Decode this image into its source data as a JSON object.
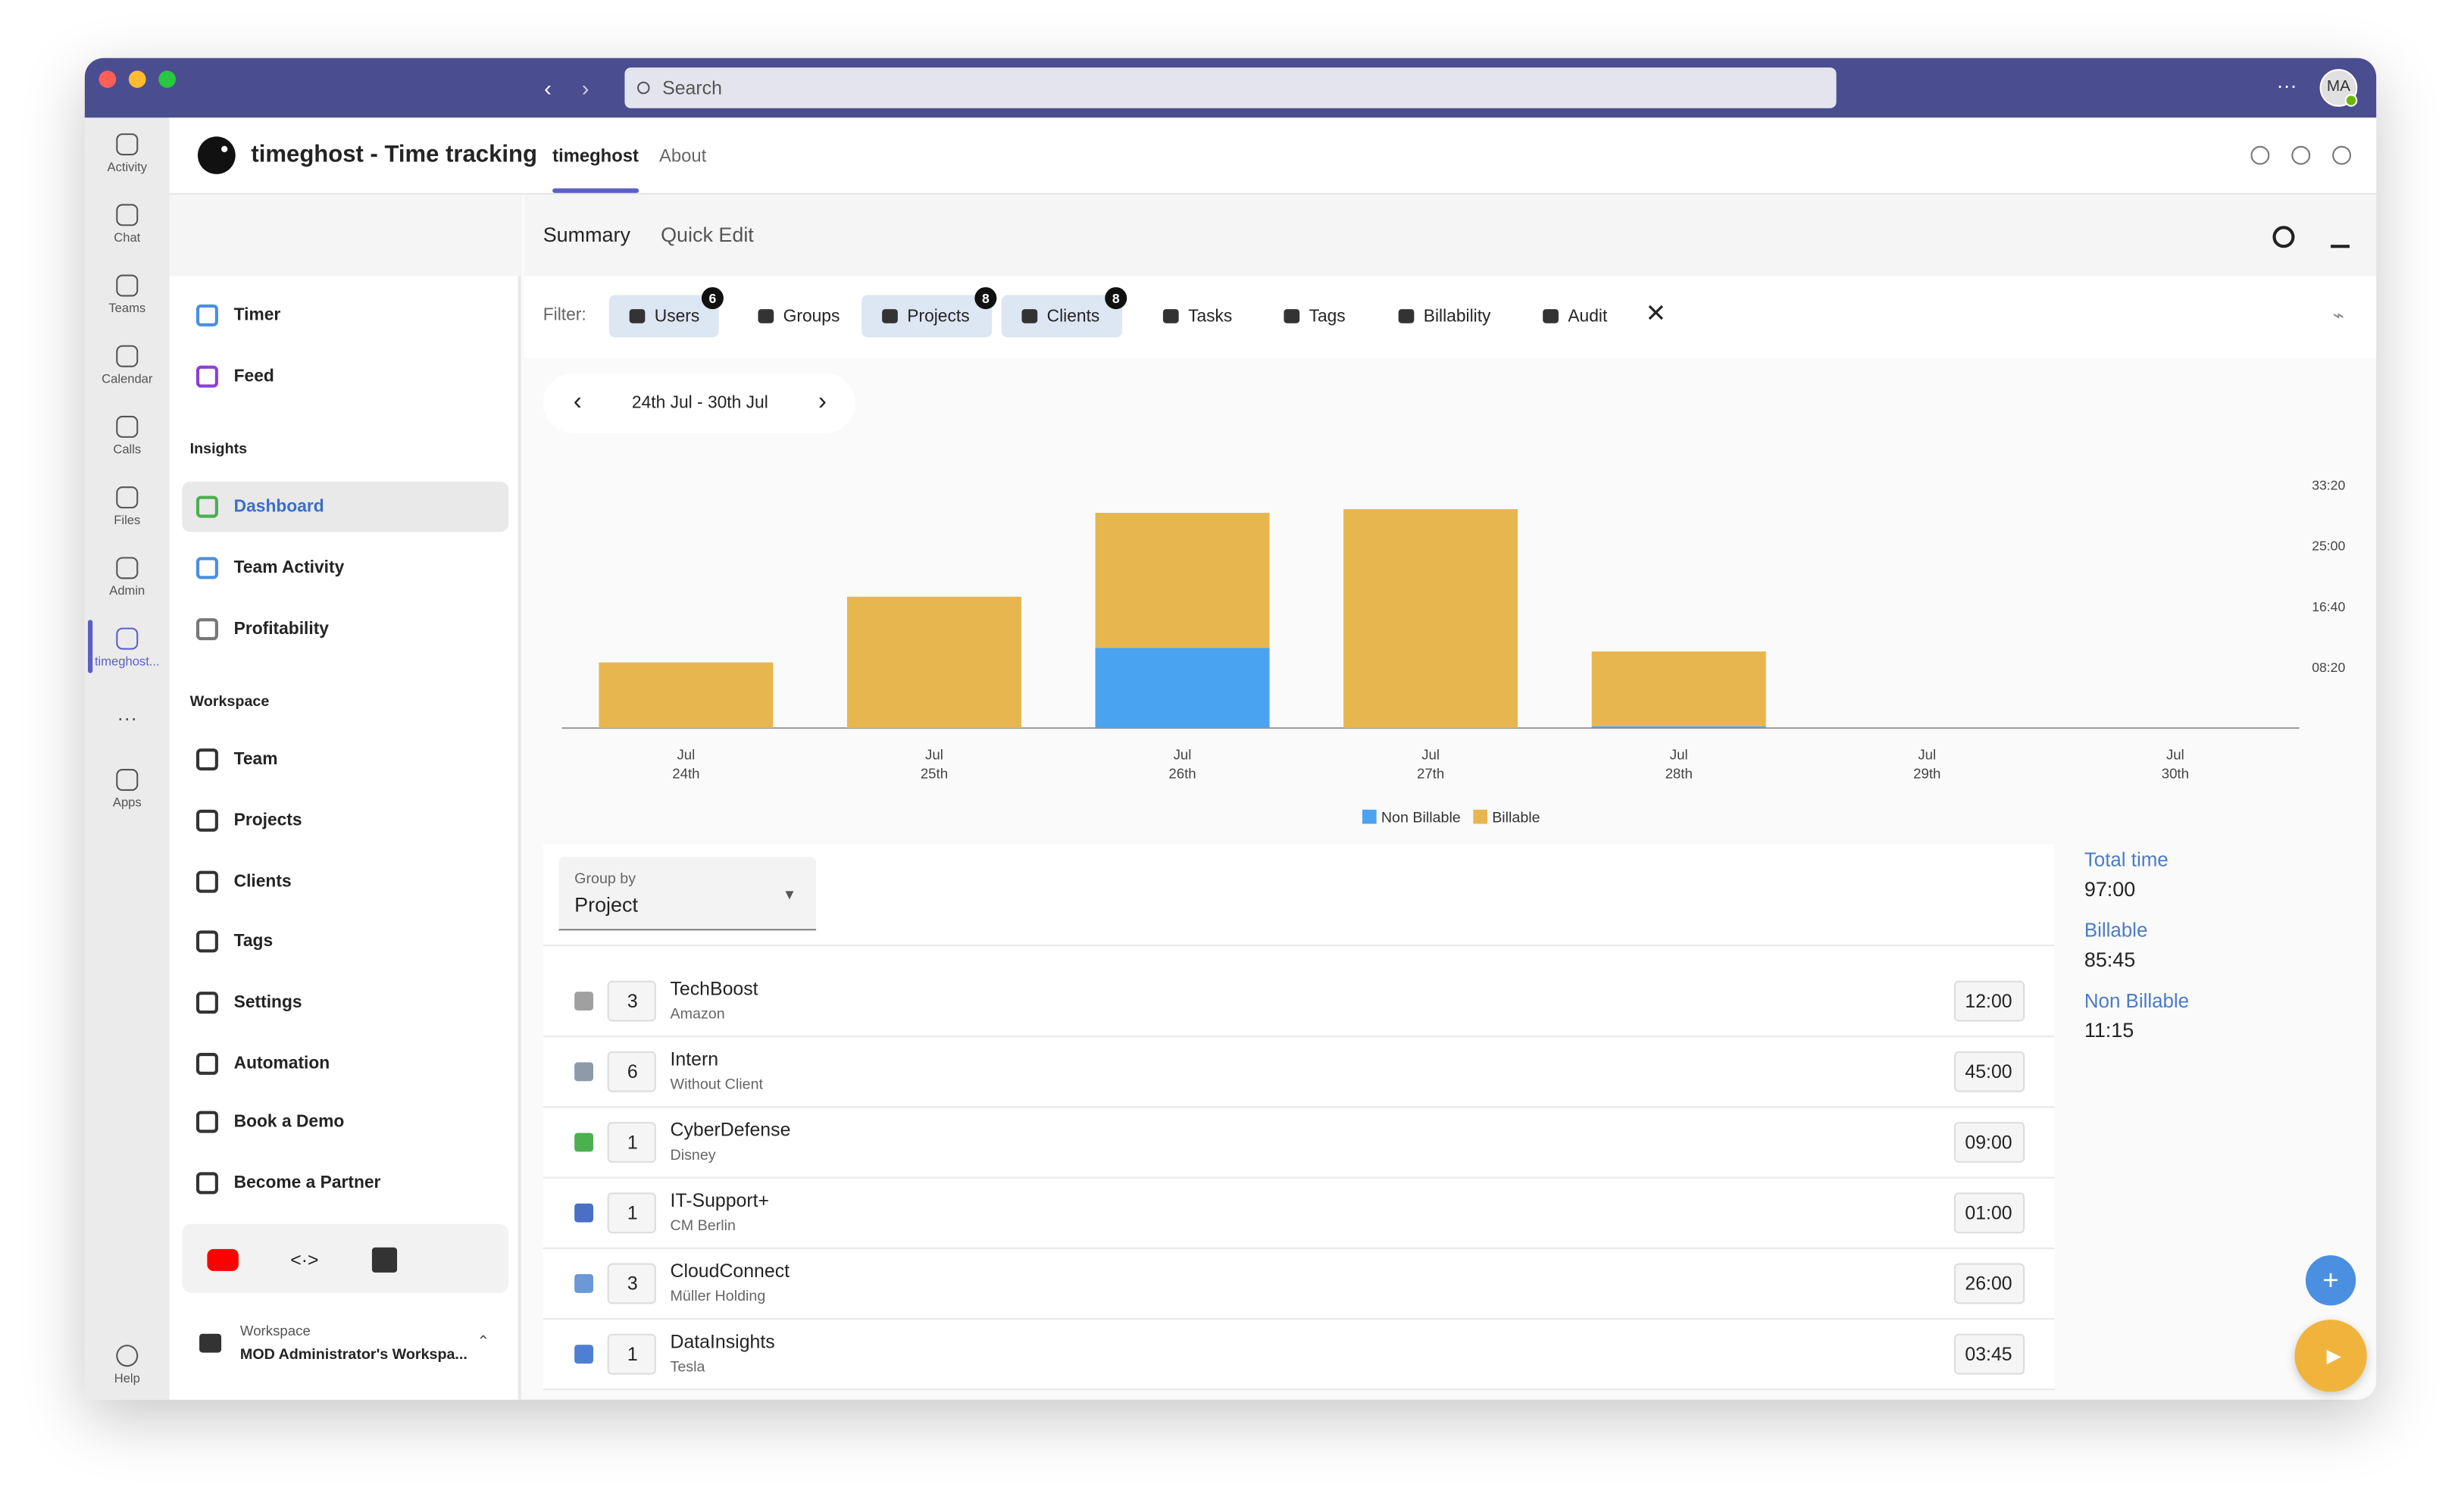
{
  "titlebar": {
    "search": "Search",
    "avatar": "MA"
  },
  "rail": {
    "items": [
      "Activity",
      "Chat",
      "Teams",
      "Calendar",
      "Calls",
      "Files",
      "Admin",
      "timeghost...",
      "Apps"
    ],
    "more": "···",
    "help": "Help"
  },
  "app": {
    "title": "timeghost - Time tracking",
    "tabs": [
      "timeghost",
      "About"
    ]
  },
  "sidebar": {
    "top": [
      "Timer",
      "Feed"
    ],
    "insights_heading": "Insights",
    "insights": [
      "Dashboard",
      "Team Activity",
      "Profitability"
    ],
    "workspace_heading": "Workspace",
    "workspace": [
      "Team",
      "Projects",
      "Clients",
      "Tags",
      "Settings",
      "Automation",
      "Book a Demo",
      "Become a Partner"
    ],
    "workspace_label": "Workspace",
    "workspace_name": "MOD Administrator's Workspa..."
  },
  "subtabs": [
    "Summary",
    "Quick Edit"
  ],
  "filter": {
    "label": "Filter:",
    "items": [
      {
        "label": "Users",
        "badge": 6,
        "active": true
      },
      {
        "label": "Groups",
        "active": false
      },
      {
        "label": "Projects",
        "badge": 8,
        "active": true
      },
      {
        "label": "Clients",
        "badge": 8,
        "active": true
      },
      {
        "label": "Tasks",
        "active": false
      },
      {
        "label": "Tags",
        "active": false
      },
      {
        "label": "Billability",
        "active": false
      },
      {
        "label": "Audit",
        "active": false
      }
    ]
  },
  "date_range": "24th Jul - 30th Jul",
  "chart_data": {
    "type": "stacked_bar",
    "categories": [
      [
        "Jul",
        "24th"
      ],
      [
        "Jul",
        "25th"
      ],
      [
        "Jul",
        "26th"
      ],
      [
        "Jul",
        "27th"
      ],
      [
        "Jul",
        "28th"
      ],
      [
        "Jul",
        "29th"
      ],
      [
        "Jul",
        "30th"
      ]
    ],
    "series": [
      {
        "name": "Non Billable",
        "color": "#4aa3f0",
        "values": [
          0,
          0,
          660,
          0,
          15,
          0,
          0
        ]
      },
      {
        "name": "Billable",
        "color": "#e8b64f",
        "values": [
          540,
          1080,
          1110,
          1800,
          615,
          0,
          0
        ]
      }
    ],
    "ylim": [
      0,
      2000
    ],
    "yticks": [
      {
        "value": 500,
        "label": "08:20"
      },
      {
        "value": 1000,
        "label": "16:40"
      },
      {
        "value": 1500,
        "label": "25:00"
      },
      {
        "value": 2000,
        "label": "33:20"
      }
    ],
    "grid": false,
    "legend": "bottom"
  },
  "group_by": {
    "label": "Group by",
    "value": "Project"
  },
  "rows": [
    {
      "color": "#a0a0a0",
      "count": 3,
      "name": "TechBoost",
      "client": "Amazon",
      "time": "12:00"
    },
    {
      "color": "#8f9aa8",
      "count": 6,
      "name": "Intern",
      "client": "Without Client",
      "time": "45:00"
    },
    {
      "color": "#4caf50",
      "count": 1,
      "name": "CyberDefense",
      "client": "Disney",
      "time": "09:00"
    },
    {
      "color": "#4a6fc4",
      "count": 1,
      "name": "IT-Support+",
      "client": "CM Berlin",
      "time": "01:00"
    },
    {
      "color": "#6b98d6",
      "count": 3,
      "name": "CloudConnect",
      "client": "Müller Holding",
      "time": "26:00"
    },
    {
      "color": "#4f7fd4",
      "count": 1,
      "name": "DataInsights",
      "client": "Tesla",
      "time": "03:45"
    }
  ],
  "totals": [
    {
      "label": "Total time",
      "value": "97:00"
    },
    {
      "label": "Billable",
      "value": "85:45"
    },
    {
      "label": "Non Billable",
      "value": "11:15"
    }
  ]
}
